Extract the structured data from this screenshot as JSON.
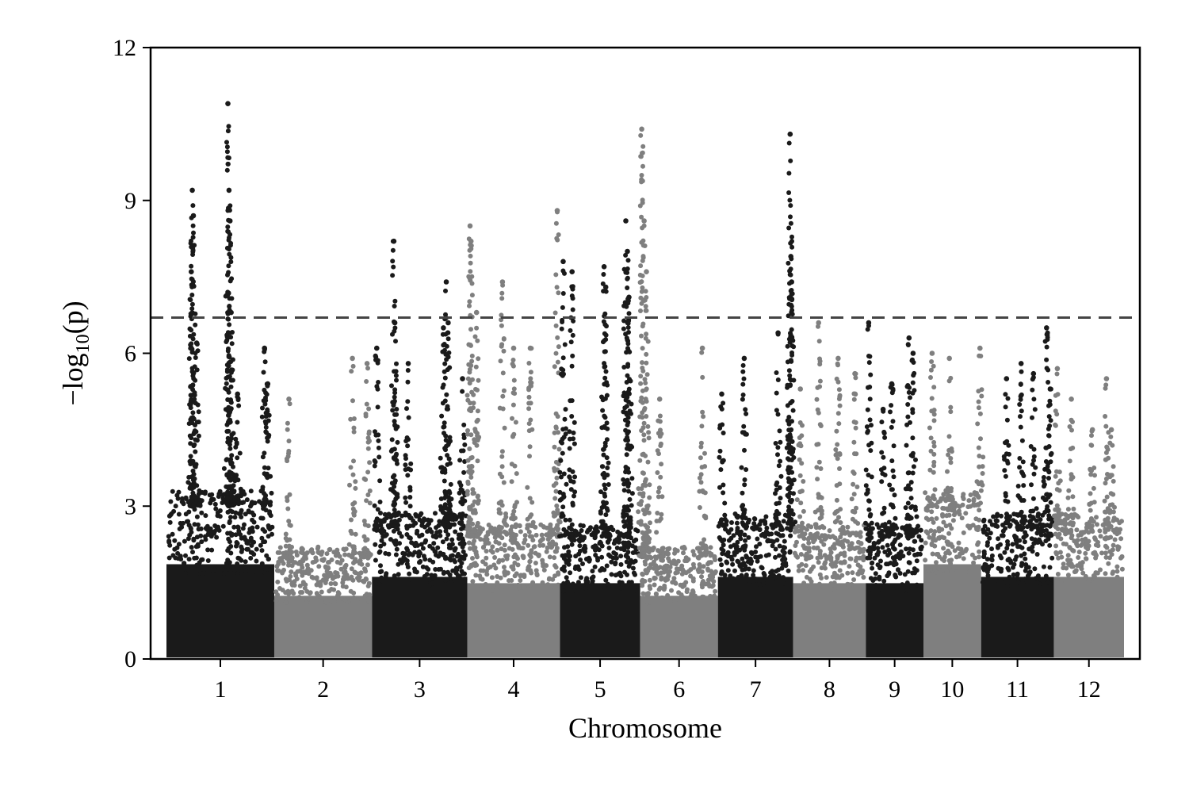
{
  "chart_data": {
    "type": "scatter",
    "subtype": "manhattan",
    "title": "",
    "xlabel": "Chromosome",
    "ylabel": "-log10(p)",
    "ylabel_parts": {
      "prefix": "−log",
      "subscript": "10",
      "suffix": "(p)"
    },
    "ylim": [
      0,
      12
    ],
    "yticks": [
      0,
      3,
      6,
      9,
      12
    ],
    "threshold": 6.7,
    "threshold_style": "dashed",
    "grid": false,
    "legend": "none",
    "colors": {
      "odd": "#1a1a1a",
      "even": "#7f7f7f",
      "threshold": "#444444",
      "frame": "#000000"
    },
    "chromosomes": [
      {
        "label": "1",
        "length": 43.0,
        "base": 3.0,
        "peaks": [
          [
            0.23,
            7.6
          ],
          [
            0.24,
            9.2
          ],
          [
            0.25,
            8.7
          ],
          [
            0.28,
            6.2
          ],
          [
            0.57,
            10.9
          ],
          [
            0.58,
            9.2
          ],
          [
            0.59,
            8.6
          ],
          [
            0.6,
            6.8
          ],
          [
            0.66,
            5.2
          ],
          [
            0.94,
            5.4
          ],
          [
            0.91,
            6.1
          ]
        ]
      },
      {
        "label": "2",
        "length": 39.0,
        "base": 2.0,
        "peaks": [
          [
            0.15,
            5.1
          ],
          [
            0.8,
            5.9
          ],
          [
            0.95,
            5.8
          ]
        ]
      },
      {
        "label": "3",
        "length": 38.0,
        "base": 2.6,
        "peaks": [
          [
            0.05,
            6.1
          ],
          [
            0.23,
            8.2
          ],
          [
            0.24,
            6.6
          ],
          [
            0.38,
            5.8
          ],
          [
            0.75,
            6.5
          ],
          [
            0.78,
            7.4
          ],
          [
            0.8,
            6.6
          ],
          [
            0.95,
            5.5
          ]
        ]
      },
      {
        "label": "4",
        "length": 37.0,
        "base": 2.4,
        "peaks": [
          [
            0.03,
            8.5
          ],
          [
            0.04,
            8.2
          ],
          [
            0.1,
            6.8
          ],
          [
            0.38,
            7.4
          ],
          [
            0.5,
            6.1
          ],
          [
            0.68,
            6.1
          ],
          [
            0.97,
            8.8
          ]
        ]
      },
      {
        "label": "5",
        "length": 32.0,
        "base": 2.4,
        "peaks": [
          [
            0.04,
            7.8
          ],
          [
            0.15,
            7.6
          ],
          [
            0.55,
            7.7
          ],
          [
            0.57,
            7.3
          ],
          [
            0.82,
            8.6
          ],
          [
            0.84,
            8.0
          ],
          [
            0.86,
            7.1
          ]
        ]
      },
      {
        "label": "6",
        "length": 31.0,
        "base": 2.0,
        "peaks": [
          [
            0.02,
            10.4
          ],
          [
            0.05,
            8.6
          ],
          [
            0.08,
            7.6
          ],
          [
            0.25,
            5.1
          ],
          [
            0.8,
            6.1
          ]
        ]
      },
      {
        "label": "7",
        "length": 30.0,
        "base": 2.6,
        "peaks": [
          [
            0.05,
            5.2
          ],
          [
            0.35,
            5.9
          ],
          [
            0.8,
            6.4
          ],
          [
            0.96,
            10.3
          ],
          [
            0.97,
            7.9
          ],
          [
            0.98,
            7.4
          ]
        ]
      },
      {
        "label": "8",
        "length": 29.0,
        "base": 2.4,
        "peaks": [
          [
            0.1,
            5.3
          ],
          [
            0.35,
            6.6
          ],
          [
            0.62,
            5.9
          ],
          [
            0.85,
            5.6
          ]
        ]
      },
      {
        "label": "9",
        "length": 23.0,
        "base": 2.4,
        "peaks": [
          [
            0.05,
            6.6
          ],
          [
            0.3,
            4.9
          ],
          [
            0.45,
            5.4
          ],
          [
            0.75,
            6.3
          ],
          [
            0.82,
            6.0
          ]
        ]
      },
      {
        "label": "10",
        "length": 23.0,
        "base": 3.0,
        "peaks": [
          [
            0.15,
            6.0
          ],
          [
            0.45,
            5.9
          ],
          [
            0.98,
            6.1
          ]
        ]
      },
      {
        "label": "11",
        "length": 29.0,
        "base": 2.6,
        "peaks": [
          [
            0.35,
            5.5
          ],
          [
            0.55,
            5.8
          ],
          [
            0.72,
            5.6
          ],
          [
            0.9,
            6.5
          ],
          [
            0.95,
            5.3
          ]
        ]
      },
      {
        "label": "12",
        "length": 28.0,
        "base": 2.6,
        "peaks": [
          [
            0.05,
            5.7
          ],
          [
            0.25,
            5.1
          ],
          [
            0.55,
            4.5
          ],
          [
            0.75,
            5.5
          ],
          [
            0.82,
            4.5
          ]
        ]
      }
    ]
  }
}
